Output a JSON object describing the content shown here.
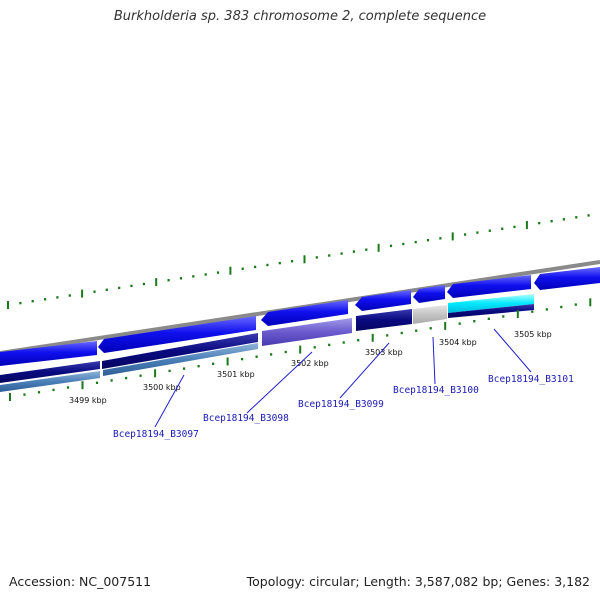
{
  "title": "Burkholderia sp. 383 chromosome 2, complete sequence",
  "accession": "Accession: NC_007511",
  "summary": "Topology: circular; Length: 3,587,082 bp; Genes: 3,182",
  "colors": {
    "backbone": "#8a8a8a",
    "tick": "#1a7a1a",
    "gene_forward": "#1010e0",
    "gene_reverse": "#0a0aa8",
    "label_line": "#2020d0",
    "label_text": "#1a1ab4"
  },
  "scale_ticks": [
    "3499 kbp",
    "3500 kbp",
    "3501 kbp",
    "3502 kbp",
    "3503 kbp",
    "3504 kbp",
    "3505 kbp"
  ],
  "gene_labels": [
    "Bcep18194_B3097",
    "Bcep18194_B3098",
    "Bcep18194_B3099",
    "Bcep18194_B3100",
    "Bcep18194_B3101"
  ]
}
